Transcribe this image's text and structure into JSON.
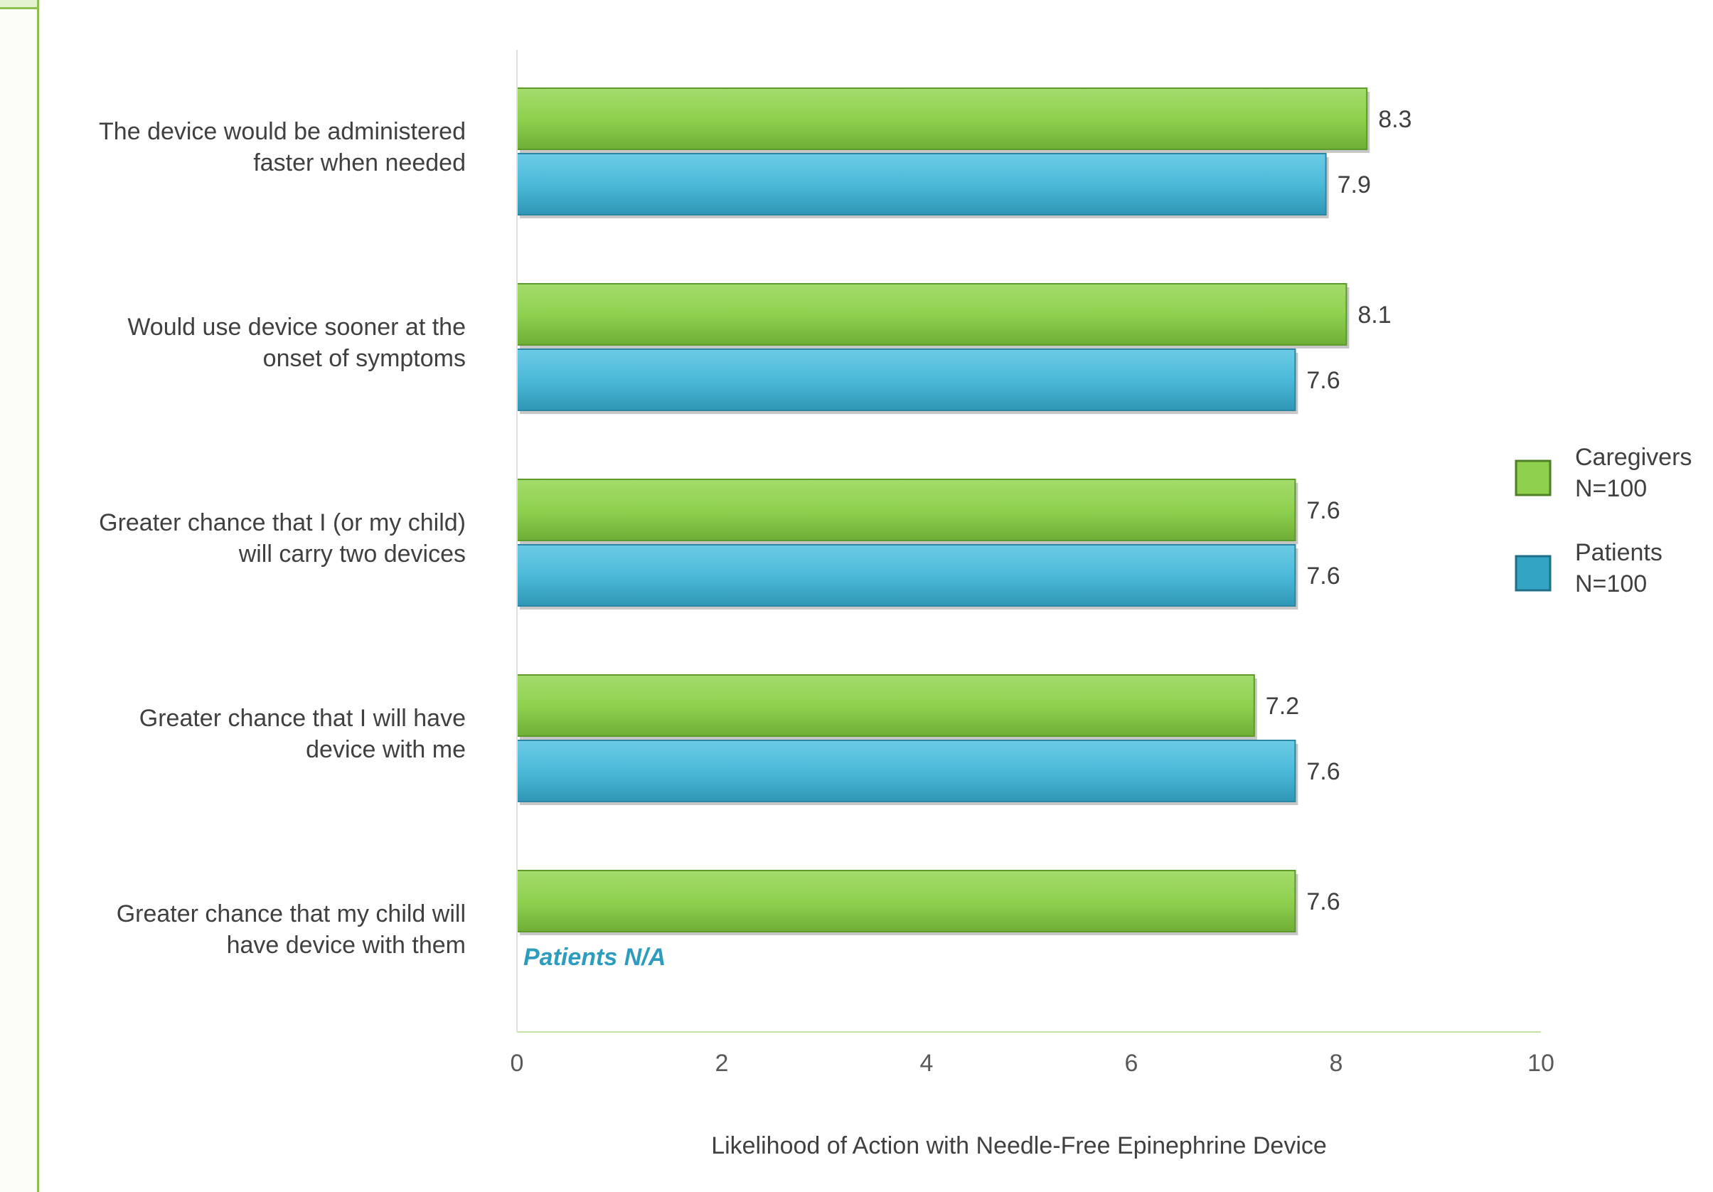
{
  "chart_data": {
    "type": "bar",
    "orientation": "horizontal",
    "categories": [
      [
        "The device would be administered",
        "faster when needed"
      ],
      [
        "Would use device sooner at the",
        "onset of symptoms"
      ],
      [
        "Greater chance that I (or my child)",
        "will carry two devices"
      ],
      [
        "Greater chance that I will have",
        "device with me"
      ],
      [
        "Greater chance that my child will",
        "have device with them"
      ]
    ],
    "series": [
      {
        "name": [
          "Caregivers",
          "N=100"
        ],
        "color": "#8fd14f",
        "values": [
          8.3,
          8.1,
          7.6,
          7.2,
          7.6
        ]
      },
      {
        "name": [
          "Patients",
          "N=100"
        ],
        "color": "#4bbad8",
        "values": [
          7.9,
          7.6,
          7.6,
          7.6,
          null
        ]
      }
    ],
    "annotations": [
      {
        "category_index": 4,
        "text": "Patients N/A"
      }
    ],
    "xlabel": "Likelihood of Action with Needle-Free Epinephrine Device",
    "xlim": [
      0,
      10
    ],
    "xticks": [
      0,
      2,
      4,
      6,
      8,
      10
    ],
    "grid": false,
    "legend": "right"
  }
}
